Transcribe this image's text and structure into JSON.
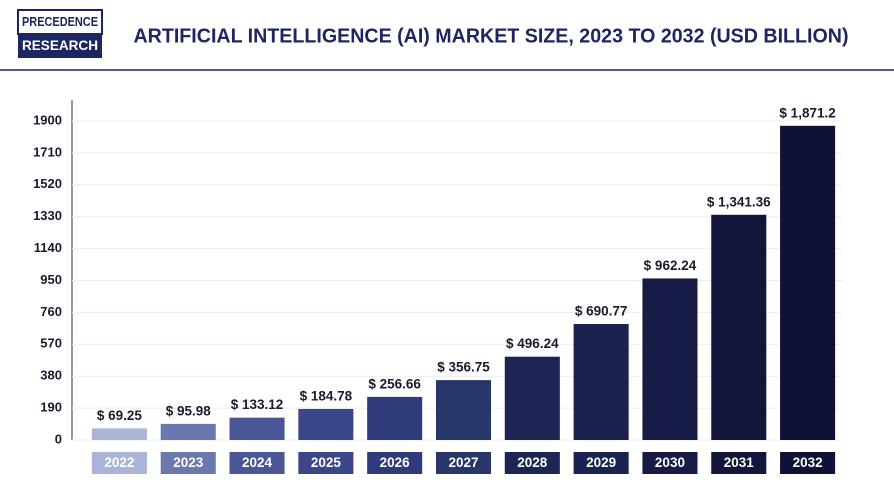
{
  "logo": {
    "line1": "PRECEDENCE",
    "line2": "RESEARCH"
  },
  "chart_data": {
    "type": "bar",
    "title": "ARTIFICIAL INTELLIGENCE (AI) MARKET SIZE, 2023 TO 2032 (USD BILLION)",
    "categories": [
      "2022",
      "2023",
      "2024",
      "2025",
      "2026",
      "2027",
      "2028",
      "2029",
      "2030",
      "2031",
      "2032"
    ],
    "values": [
      69.25,
      95.98,
      133.12,
      184.78,
      256.66,
      356.75,
      496.24,
      690.77,
      962.24,
      1341.36,
      1871.2
    ],
    "value_labels": [
      "$ 69.25",
      "$ 95.98",
      "$ 133.12",
      "$ 184.78",
      "$ 256.66",
      "$ 356.75",
      "$ 496.24",
      "$ 690.77",
      "$ 962.24",
      "$ 1,341.36",
      "$ 1,871.2"
    ],
    "colors": [
      "#aab4d8",
      "#6b78ae",
      "#4a5695",
      "#3b4789",
      "#2f3b7b",
      "#28376a",
      "#1d2554",
      "#1a2250",
      "#161c45",
      "#11163a",
      "#0e1236"
    ],
    "ylim": [
      0,
      2025
    ],
    "yticks": [
      0,
      190,
      380,
      570,
      760,
      950,
      1140,
      1330,
      1520,
      1710,
      1900
    ],
    "grid": true
  }
}
